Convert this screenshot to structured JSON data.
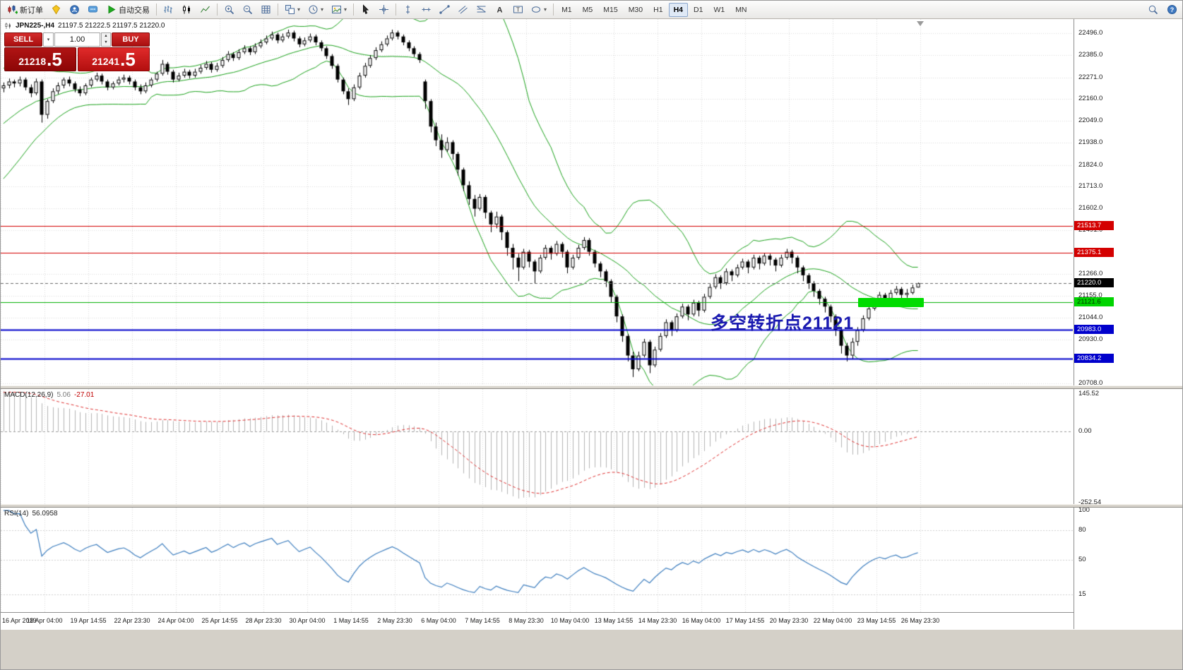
{
  "icons": {
    "caret": "▾",
    "up": "▲",
    "down": "▼",
    "text_tool": "A",
    "label_tool": "T",
    "help": "?"
  },
  "toolbar": {
    "new_order_label": "新订单",
    "autotrading_label": "自动交易",
    "timeframes": [
      "M1",
      "M5",
      "M15",
      "M30",
      "H1",
      "H4",
      "D1",
      "W1",
      "MN"
    ],
    "active_timeframe": "H4"
  },
  "chart": {
    "title_symbol": "JPN225-,H4",
    "title_ohlc": "21197.5 21222.5 21197.5 21220.0",
    "annotation": "多空转折点21121",
    "trade_panel": {
      "sell_label": "SELL",
      "buy_label": "BUY",
      "volume": "1.00",
      "sell_price_main": "21218",
      "sell_price_big": ".5",
      "buy_price_main": "21241",
      "buy_price_big": ".5"
    }
  },
  "chart_data": {
    "type": "candlestick",
    "symbol": "JPN225-",
    "timeframe": "H4",
    "colors": {
      "bull": "#ffffff",
      "bear": "#000000",
      "wick": "#000000",
      "bollinger": "#1ca31c",
      "grid": "#dadada",
      "macd_hist": "#b4b4b4",
      "macd_signal": "#e03030",
      "rsi_line": "#3d7ebf"
    },
    "price_max": 22569,
    "price_min": 20697,
    "visible_from": 30,
    "plot_right_fraction": 0.858,
    "price_axis_ticks": [
      22496.0,
      22385.0,
      22271.0,
      22160.0,
      22049.0,
      21938.0,
      21824.0,
      21713.0,
      21602.0,
      21491.0,
      21266.0,
      21155.0,
      21044.0,
      20930.0,
      20708.0
    ],
    "price_lines": [
      {
        "value": 21513.7,
        "label": "21513.7",
        "color": "#d40000",
        "width": 1,
        "dash": null,
        "badge_bg": "#d40000",
        "badge_fg": "#ffffff"
      },
      {
        "value": 21375.1,
        "label": "21375.1",
        "color": "#d40000",
        "width": 1,
        "dash": null,
        "badge_bg": "#d40000",
        "badge_fg": "#ffffff"
      },
      {
        "value": 21220.0,
        "label": "21220.0",
        "color": "#666666",
        "width": 1,
        "dash": [
          4,
          3
        ],
        "badge_bg": "#000000",
        "badge_fg": "#ffffff"
      },
      {
        "value": 21121.6,
        "label": "21121.6",
        "color": "#00b000",
        "width": 1,
        "dash": null,
        "badge_bg": "#00d400",
        "badge_fg": "#003300"
      },
      {
        "value": 20983.0,
        "label": "20983.0",
        "color": "#0000cc",
        "width": 2,
        "dash": null,
        "badge_bg": "#0000cc",
        "badge_fg": "#ffffff"
      },
      {
        "value": 20834.2,
        "label": "20834.2",
        "color": "#0000cc",
        "width": 2,
        "dash": null,
        "badge_bg": "#0000cc",
        "badge_fg": "#ffffff"
      }
    ],
    "highlight": {
      "price": 21121.6,
      "x_start_frac": 0.8,
      "x_end_frac": 0.861
    },
    "annotation_pos": {
      "x_frac": 0.662,
      "price": 21085
    },
    "x_labels": [
      "16 Apr 2019",
      "18 Apr 04:00",
      "19 Apr 14:55",
      "22 Apr 23:30",
      "24 Apr 04:00",
      "25 Apr 14:55",
      "28 Apr 23:30",
      "30 Apr 04:00",
      "1 May 14:55",
      "2 May 23:30",
      "6 May 04:00",
      "7 May 14:55",
      "8 May 23:30",
      "10 May 04:00",
      "13 May 14:55",
      "14 May 23:30",
      "16 May 04:00",
      "17 May 14:55",
      "20 May 23:30",
      "22 May 04:00",
      "23 May 14:55",
      "26 May 23:30"
    ],
    "bollinger": {
      "period": 20,
      "deviation": 2
    },
    "macd": {
      "label": "MACD(12,26,9)",
      "value": "5.06",
      "signal_value": "-27.01",
      "fast": 12,
      "slow": 26,
      "smooth": 9,
      "range": {
        "min": -258,
        "max": 152
      },
      "ticks": [
        {
          "v": 145.52,
          "label": "145.52"
        },
        {
          "v": 0,
          "label": "0.00"
        },
        {
          "v": -252.54,
          "label": "-252.54"
        }
      ]
    },
    "rsi": {
      "label": "RSI(14)",
      "value": "56.0958",
      "period": 14,
      "range": {
        "min": -3,
        "max": 103
      },
      "levels": [
        80,
        50,
        15
      ],
      "ticks": [
        {
          "v": 100,
          "label": "100"
        },
        {
          "v": 80,
          "label": "80"
        },
        {
          "v": 50,
          "label": "50"
        },
        {
          "v": 15,
          "label": "15"
        }
      ]
    },
    "candles": [
      [
        21460,
        21495,
        21448,
        21480
      ],
      [
        21480,
        21525,
        21468,
        21510
      ],
      [
        21510,
        21555,
        21498,
        21540
      ],
      [
        21540,
        21580,
        21528,
        21565
      ],
      [
        21565,
        21605,
        21553,
        21590
      ],
      [
        21590,
        21635,
        21578,
        21620
      ],
      [
        21620,
        21665,
        21608,
        21650
      ],
      [
        21650,
        21690,
        21638,
        21675
      ],
      [
        21675,
        21715,
        21663,
        21700
      ],
      [
        21700,
        21745,
        21688,
        21730
      ],
      [
        21730,
        21775,
        21718,
        21760
      ],
      [
        21760,
        21805,
        21748,
        21790
      ],
      [
        21790,
        21830,
        21778,
        21815
      ],
      [
        21815,
        21855,
        21803,
        21840
      ],
      [
        21840,
        21885,
        21828,
        21870
      ],
      [
        21870,
        21915,
        21858,
        21900
      ],
      [
        21900,
        21940,
        21888,
        21925
      ],
      [
        21925,
        21965,
        21913,
        21950
      ],
      [
        21950,
        21995,
        21938,
        21980
      ],
      [
        21980,
        22025,
        21968,
        22010
      ],
      [
        22010,
        22050,
        21998,
        22035
      ],
      [
        22035,
        22075,
        22023,
        22060
      ],
      [
        22060,
        22105,
        22048,
        22090
      ],
      [
        22090,
        22130,
        22078,
        22115
      ],
      [
        22115,
        22155,
        22103,
        22140
      ],
      [
        22140,
        22175,
        22128,
        22160
      ],
      [
        22160,
        22195,
        22148,
        22180
      ],
      [
        22180,
        22210,
        22168,
        22195
      ],
      [
        22195,
        22220,
        22183,
        22205
      ],
      [
        22205,
        22230,
        22193,
        22215
      ],
      [
        22215,
        22245,
        22195,
        22230
      ],
      [
        22230,
        22265,
        22215,
        22250
      ],
      [
        22250,
        22260,
        22220,
        22240
      ],
      [
        22240,
        22275,
        22225,
        22260
      ],
      [
        22260,
        22270,
        22205,
        22220
      ],
      [
        22220,
        22235,
        22170,
        22190
      ],
      [
        22190,
        22265,
        22180,
        22250
      ],
      [
        22250,
        22260,
        22040,
        22080
      ],
      [
        22080,
        22160,
        22060,
        22150
      ],
      [
        22150,
        22215,
        22140,
        22200
      ],
      [
        22200,
        22245,
        22185,
        22230
      ],
      [
        22230,
        22270,
        22215,
        22260
      ],
      [
        22260,
        22275,
        22225,
        22240
      ],
      [
        22240,
        22250,
        22195,
        22210
      ],
      [
        22210,
        22225,
        22175,
        22190
      ],
      [
        22190,
        22240,
        22180,
        22230
      ],
      [
        22230,
        22270,
        22220,
        22260
      ],
      [
        22260,
        22295,
        22250,
        22280
      ],
      [
        22280,
        22290,
        22235,
        22250
      ],
      [
        22250,
        22260,
        22205,
        22220
      ],
      [
        22220,
        22250,
        22210,
        22240
      ],
      [
        22240,
        22275,
        22230,
        22260
      ],
      [
        22260,
        22285,
        22245,
        22270
      ],
      [
        22270,
        22280,
        22235,
        22250
      ],
      [
        22250,
        22260,
        22205,
        22220
      ],
      [
        22220,
        22235,
        22185,
        22200
      ],
      [
        22200,
        22245,
        22190,
        22230
      ],
      [
        22230,
        22270,
        22220,
        22260
      ],
      [
        22260,
        22300,
        22250,
        22290
      ],
      [
        22290,
        22360,
        22280,
        22340
      ],
      [
        22340,
        22350,
        22285,
        22300
      ],
      [
        22300,
        22310,
        22245,
        22260
      ],
      [
        22260,
        22295,
        22250,
        22280
      ],
      [
        22280,
        22315,
        22270,
        22300
      ],
      [
        22300,
        22310,
        22265,
        22280
      ],
      [
        22280,
        22315,
        22270,
        22300
      ],
      [
        22300,
        22335,
        22290,
        22320
      ],
      [
        22320,
        22355,
        22310,
        22340
      ],
      [
        22340,
        22350,
        22295,
        22310
      ],
      [
        22310,
        22345,
        22300,
        22330
      ],
      [
        22330,
        22375,
        22320,
        22360
      ],
      [
        22360,
        22405,
        22350,
        22390
      ],
      [
        22390,
        22400,
        22355,
        22370
      ],
      [
        22370,
        22415,
        22360,
        22400
      ],
      [
        22400,
        22435,
        22390,
        22420
      ],
      [
        22420,
        22430,
        22385,
        22400
      ],
      [
        22400,
        22445,
        22390,
        22430
      ],
      [
        22430,
        22465,
        22420,
        22450
      ],
      [
        22450,
        22485,
        22440,
        22470
      ],
      [
        22470,
        22505,
        22460,
        22490
      ],
      [
        22490,
        22500,
        22445,
        22460
      ],
      [
        22460,
        22495,
        22450,
        22480
      ],
      [
        22480,
        22515,
        22470,
        22500
      ],
      [
        22500,
        22510,
        22455,
        22470
      ],
      [
        22470,
        22480,
        22425,
        22440
      ],
      [
        22440,
        22475,
        22430,
        22460
      ],
      [
        22460,
        22495,
        22450,
        22480
      ],
      [
        22480,
        22490,
        22435,
        22450
      ],
      [
        22450,
        22460,
        22405,
        22420
      ],
      [
        22420,
        22430,
        22365,
        22380
      ],
      [
        22380,
        22390,
        22315,
        22330
      ],
      [
        22330,
        22340,
        22245,
        22260
      ],
      [
        22260,
        22270,
        22185,
        22200
      ],
      [
        22200,
        22215,
        22130,
        22160
      ],
      [
        22160,
        22235,
        22150,
        22220
      ],
      [
        22220,
        22295,
        22210,
        22280
      ],
      [
        22280,
        22345,
        22270,
        22330
      ],
      [
        22330,
        22385,
        22320,
        22370
      ],
      [
        22370,
        22425,
        22360,
        22410
      ],
      [
        22410,
        22455,
        22400,
        22440
      ],
      [
        22440,
        22485,
        22430,
        22470
      ],
      [
        22470,
        22515,
        22460,
        22500
      ],
      [
        22500,
        22510,
        22465,
        22480
      ],
      [
        22480,
        22490,
        22435,
        22450
      ],
      [
        22450,
        22460,
        22405,
        22420
      ],
      [
        22420,
        22430,
        22375,
        22390
      ],
      [
        22390,
        22400,
        22345,
        22360
      ],
      [
        22250,
        22260,
        22110,
        22150
      ],
      [
        22150,
        22160,
        21990,
        22020
      ],
      [
        22020,
        22040,
        21920,
        21950
      ],
      [
        21950,
        21980,
        21860,
        21900
      ],
      [
        21900,
        21965,
        21890,
        21940
      ],
      [
        21940,
        21950,
        21850,
        21880
      ],
      [
        21880,
        21890,
        21770,
        21800
      ],
      [
        21800,
        21810,
        21690,
        21720
      ],
      [
        21720,
        21740,
        21620,
        21650
      ],
      [
        21650,
        21670,
        21560,
        21600
      ],
      [
        21600,
        21675,
        21590,
        21660
      ],
      [
        21660,
        21670,
        21550,
        21580
      ],
      [
        21580,
        21590,
        21480,
        21520
      ],
      [
        21520,
        21585,
        21500,
        21560
      ],
      [
        21560,
        21570,
        21440,
        21480
      ],
      [
        21480,
        21490,
        21360,
        21400
      ],
      [
        21400,
        21420,
        21290,
        21350
      ],
      [
        21350,
        21370,
        21230,
        21300
      ],
      [
        21300,
        21395,
        21290,
        21380
      ],
      [
        21380,
        21390,
        21300,
        21330
      ],
      [
        21330,
        21340,
        21220,
        21280
      ],
      [
        21280,
        21365,
        21270,
        21350
      ],
      [
        21350,
        21415,
        21340,
        21400
      ],
      [
        21400,
        21410,
        21340,
        21370
      ],
      [
        21370,
        21435,
        21360,
        21420
      ],
      [
        21420,
        21430,
        21350,
        21380
      ],
      [
        21380,
        21390,
        21270,
        21300
      ],
      [
        21300,
        21365,
        21290,
        21350
      ],
      [
        21350,
        21415,
        21340,
        21400
      ],
      [
        21400,
        21455,
        21390,
        21440
      ],
      [
        21440,
        21450,
        21360,
        21380
      ],
      [
        21380,
        21390,
        21300,
        21320
      ],
      [
        21320,
        21330,
        21250,
        21280
      ],
      [
        21280,
        21290,
        21200,
        21230
      ],
      [
        21230,
        21240,
        21120,
        21150
      ],
      [
        21150,
        21160,
        21020,
        21050
      ],
      [
        21050,
        21060,
        20920,
        20950
      ],
      [
        20950,
        20960,
        20820,
        20850
      ],
      [
        20850,
        20870,
        20740,
        20780
      ],
      [
        20780,
        20870,
        20770,
        20850
      ],
      [
        20850,
        20935,
        20840,
        20920
      ],
      [
        20920,
        20930,
        20760,
        20800
      ],
      [
        20800,
        20895,
        20790,
        20880
      ],
      [
        20880,
        20965,
        20870,
        20950
      ],
      [
        20950,
        21035,
        20940,
        21020
      ],
      [
        21020,
        21030,
        20950,
        20980
      ],
      [
        20980,
        21065,
        20970,
        21050
      ],
      [
        21050,
        21115,
        21040,
        21100
      ],
      [
        21100,
        21110,
        21030,
        21060
      ],
      [
        21060,
        21135,
        21050,
        21120
      ],
      [
        21120,
        21130,
        21050,
        21080
      ],
      [
        21080,
        21165,
        21070,
        21150
      ],
      [
        21150,
        21215,
        21140,
        21200
      ],
      [
        21200,
        21265,
        21190,
        21250
      ],
      [
        21250,
        21260,
        21190,
        21220
      ],
      [
        21220,
        21295,
        21210,
        21280
      ],
      [
        21280,
        21290,
        21230,
        21260
      ],
      [
        21260,
        21315,
        21250,
        21300
      ],
      [
        21300,
        21345,
        21290,
        21330
      ],
      [
        21330,
        21340,
        21270,
        21300
      ],
      [
        21300,
        21365,
        21290,
        21350
      ],
      [
        21350,
        21360,
        21290,
        21320
      ],
      [
        21320,
        21375,
        21310,
        21360
      ],
      [
        21360,
        21370,
        21310,
        21340
      ],
      [
        21340,
        21350,
        21280,
        21310
      ],
      [
        21310,
        21365,
        21300,
        21350
      ],
      [
        21350,
        21395,
        21340,
        21380
      ],
      [
        21380,
        21390,
        21320,
        21350
      ],
      [
        21350,
        21360,
        21270,
        21300
      ],
      [
        21300,
        21310,
        21230,
        21260
      ],
      [
        21260,
        21270,
        21190,
        21220
      ],
      [
        21220,
        21230,
        21150,
        21180
      ],
      [
        21180,
        21190,
        21110,
        21140
      ],
      [
        21140,
        21150,
        21070,
        21100
      ],
      [
        21100,
        21110,
        21020,
        21050
      ],
      [
        21050,
        21060,
        20950,
        20980
      ],
      [
        20980,
        20990,
        20860,
        20900
      ],
      [
        20900,
        20915,
        20820,
        20850
      ],
      [
        20850,
        20940,
        20830,
        20920
      ],
      [
        20920,
        20995,
        20900,
        20980
      ],
      [
        20980,
        21055,
        20970,
        21040
      ],
      [
        21040,
        21105,
        21030,
        21090
      ],
      [
        21090,
        21145,
        21080,
        21130
      ],
      [
        21130,
        21175,
        21120,
        21160
      ],
      [
        21160,
        21170,
        21110,
        21140
      ],
      [
        21140,
        21185,
        21130,
        21170
      ],
      [
        21170,
        21205,
        21160,
        21190
      ],
      [
        21190,
        21200,
        21140,
        21160
      ],
      [
        21160,
        21190,
        21145,
        21170
      ],
      [
        21170,
        21212,
        21162,
        21197.5
      ],
      [
        21197.5,
        21222.5,
        21197.5,
        21220
      ]
    ]
  }
}
